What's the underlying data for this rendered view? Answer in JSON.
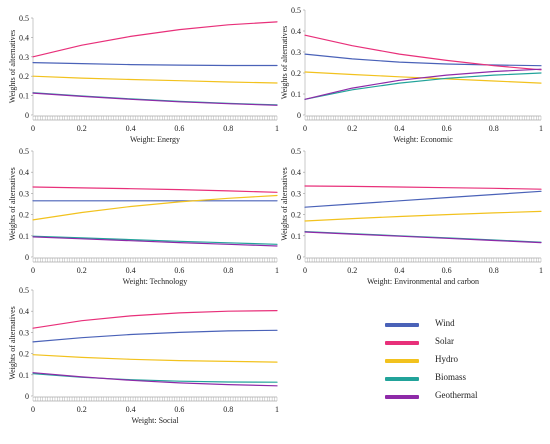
{
  "colors": {
    "Wind": "#4a62b8",
    "Solar": "#e8307a",
    "Hydro": "#f2c21e",
    "Biomass": "#22a39a",
    "Geothermal": "#8e2aa8"
  },
  "legend": [
    "Wind",
    "Solar",
    "Hydro",
    "Biomass",
    "Geothermal"
  ],
  "chart_data": [
    {
      "type": "line",
      "xlabel": "Weight: Energy",
      "ylabel": "Weights of alternatives",
      "xlim": [
        0,
        1
      ],
      "ylim": [
        0,
        0.5
      ],
      "xticks": [
        0,
        0.2,
        0.4,
        0.6,
        0.8,
        1
      ],
      "yticks": [
        0,
        0.1,
        0.2,
        0.3,
        0.4,
        0.5
      ],
      "x": [
        0,
        0.2,
        0.4,
        0.6,
        0.8,
        1.0
      ],
      "series": [
        {
          "name": "Wind",
          "values": [
            0.27,
            0.265,
            0.26,
            0.257,
            0.255,
            0.255
          ]
        },
        {
          "name": "Solar",
          "values": [
            0.3,
            0.36,
            0.405,
            0.44,
            0.465,
            0.48
          ]
        },
        {
          "name": "Hydro",
          "values": [
            0.2,
            0.19,
            0.183,
            0.177,
            0.17,
            0.165
          ]
        },
        {
          "name": "Biomass",
          "values": [
            0.115,
            0.098,
            0.083,
            0.07,
            0.06,
            0.052
          ]
        },
        {
          "name": "Geothermal",
          "values": [
            0.113,
            0.096,
            0.081,
            0.068,
            0.058,
            0.05
          ]
        }
      ]
    },
    {
      "type": "line",
      "xlabel": "Weight: Economic",
      "ylabel": "Weights of alternatives",
      "xlim": [
        0,
        1
      ],
      "ylim": [
        0,
        0.5
      ],
      "xticks": [
        0,
        0.2,
        0.4,
        0.6,
        0.8,
        1
      ],
      "yticks": [
        0,
        0.1,
        0.2,
        0.3,
        0.4,
        0.5
      ],
      "x": [
        0,
        0.2,
        0.4,
        0.6,
        0.8,
        1.0
      ],
      "series": [
        {
          "name": "Wind",
          "values": [
            0.29,
            0.267,
            0.252,
            0.243,
            0.238,
            0.235
          ]
        },
        {
          "name": "Solar",
          "values": [
            0.38,
            0.33,
            0.29,
            0.26,
            0.235,
            0.215
          ]
        },
        {
          "name": "Hydro",
          "values": [
            0.205,
            0.193,
            0.182,
            0.172,
            0.162,
            0.152
          ]
        },
        {
          "name": "Biomass",
          "values": [
            0.075,
            0.12,
            0.152,
            0.175,
            0.19,
            0.2
          ]
        },
        {
          "name": "Geothermal",
          "values": [
            0.075,
            0.128,
            0.165,
            0.19,
            0.207,
            0.218
          ]
        }
      ]
    },
    {
      "type": "line",
      "xlabel": "Weight: Technology",
      "ylabel": "Weights of alternatives",
      "xlim": [
        0,
        1
      ],
      "ylim": [
        0,
        0.5
      ],
      "xticks": [
        0,
        0.2,
        0.4,
        0.6,
        0.8,
        1
      ],
      "yticks": [
        0,
        0.1,
        0.2,
        0.3,
        0.4,
        0.5
      ],
      "x": [
        0,
        0.2,
        0.4,
        0.6,
        0.8,
        1.0
      ],
      "series": [
        {
          "name": "Wind",
          "values": [
            0.265,
            0.265,
            0.265,
            0.265,
            0.265,
            0.265
          ]
        },
        {
          "name": "Solar",
          "values": [
            0.33,
            0.326,
            0.322,
            0.318,
            0.312,
            0.305
          ]
        },
        {
          "name": "Hydro",
          "values": [
            0.175,
            0.21,
            0.238,
            0.26,
            0.277,
            0.29
          ]
        },
        {
          "name": "Biomass",
          "values": [
            0.098,
            0.09,
            0.082,
            0.074,
            0.067,
            0.06
          ]
        },
        {
          "name": "Geothermal",
          "values": [
            0.095,
            0.086,
            0.077,
            0.068,
            0.06,
            0.052
          ]
        }
      ]
    },
    {
      "type": "line",
      "xlabel": "Weight: Environmental and carbon",
      "ylabel": "Weights of alternatives",
      "xlim": [
        0,
        1
      ],
      "ylim": [
        0,
        0.5
      ],
      "xticks": [
        0,
        0.2,
        0.4,
        0.6,
        0.8,
        1
      ],
      "yticks": [
        0,
        0.1,
        0.2,
        0.3,
        0.4,
        0.5
      ],
      "x": [
        0,
        0.2,
        0.4,
        0.6,
        0.8,
        1.0
      ],
      "series": [
        {
          "name": "Wind",
          "values": [
            0.235,
            0.25,
            0.265,
            0.28,
            0.295,
            0.31
          ]
        },
        {
          "name": "Solar",
          "values": [
            0.335,
            0.333,
            0.33,
            0.327,
            0.324,
            0.32
          ]
        },
        {
          "name": "Hydro",
          "values": [
            0.17,
            0.181,
            0.191,
            0.2,
            0.208,
            0.215
          ]
        },
        {
          "name": "Biomass",
          "values": [
            0.12,
            0.11,
            0.1,
            0.09,
            0.08,
            0.07
          ]
        },
        {
          "name": "Geothermal",
          "values": [
            0.118,
            0.108,
            0.098,
            0.088,
            0.078,
            0.068
          ]
        }
      ]
    },
    {
      "type": "line",
      "xlabel": "Weight: Social",
      "ylabel": "Weights of alternatives",
      "xlim": [
        0,
        1
      ],
      "ylim": [
        0,
        0.5
      ],
      "xticks": [
        0,
        0.2,
        0.4,
        0.6,
        0.8,
        1
      ],
      "yticks": [
        0,
        0.1,
        0.2,
        0.3,
        0.4,
        0.5
      ],
      "x": [
        0,
        0.2,
        0.4,
        0.6,
        0.8,
        1.0
      ],
      "series": [
        {
          "name": "Wind",
          "values": [
            0.255,
            0.275,
            0.29,
            0.3,
            0.307,
            0.31
          ]
        },
        {
          "name": "Solar",
          "values": [
            0.32,
            0.355,
            0.378,
            0.392,
            0.4,
            0.403
          ]
        },
        {
          "name": "Hydro",
          "values": [
            0.195,
            0.182,
            0.173,
            0.167,
            0.163,
            0.16
          ]
        },
        {
          "name": "Biomass",
          "values": [
            0.105,
            0.088,
            0.077,
            0.07,
            0.066,
            0.065
          ]
        },
        {
          "name": "Geothermal",
          "values": [
            0.11,
            0.09,
            0.074,
            0.062,
            0.054,
            0.048
          ]
        }
      ]
    }
  ]
}
